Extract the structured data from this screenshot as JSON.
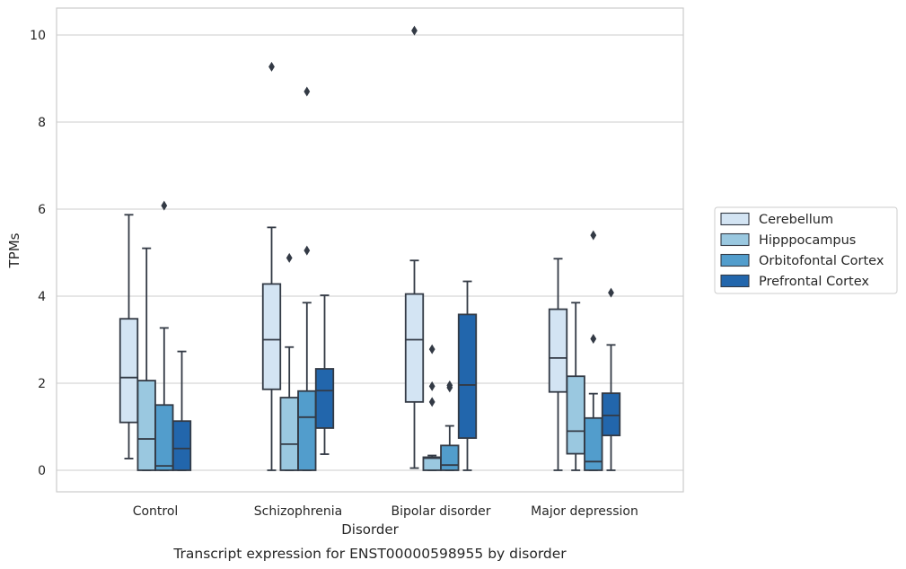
{
  "chart_data": {
    "type": "boxplot",
    "caption": "Transcript expression for ENST00000598955 by disorder",
    "xlabel": "Disorder",
    "ylabel": "TPMs",
    "ylim": [
      -0.5,
      10.6
    ],
    "yticks": [
      0,
      2,
      4,
      6,
      8,
      10
    ],
    "grid": "horizontal",
    "legend_position": "right",
    "categories": [
      "Control",
      "Schizophrenia",
      "Bipolar disorder",
      "Major depression"
    ],
    "series": [
      {
        "name": "Cerebellum",
        "color": "#d3e4f3",
        "boxes": [
          {
            "whislo": 0.27,
            "q1": 1.1,
            "med": 2.13,
            "q3": 3.48,
            "whishi": 5.87,
            "fliers": []
          },
          {
            "whislo": 0.0,
            "q1": 1.86,
            "med": 3.0,
            "q3": 4.28,
            "whishi": 5.58,
            "fliers": [
              9.27
            ]
          },
          {
            "whislo": 0.05,
            "q1": 1.57,
            "med": 3.0,
            "q3": 4.05,
            "whishi": 4.82,
            "fliers": [
              10.1
            ]
          },
          {
            "whislo": 0.0,
            "q1": 1.8,
            "med": 2.58,
            "q3": 3.7,
            "whishi": 4.86,
            "fliers": []
          }
        ]
      },
      {
        "name": "Hipppocampus",
        "color": "#9ac8e0",
        "boxes": [
          {
            "whislo": 0.0,
            "q1": 0.0,
            "med": 0.72,
            "q3": 2.06,
            "whishi": 5.1,
            "fliers": []
          },
          {
            "whislo": 0.0,
            "q1": 0.0,
            "med": 0.6,
            "q3": 1.67,
            "whishi": 2.83,
            "fliers": [
              4.88
            ]
          },
          {
            "whislo": 0.0,
            "q1": 0.0,
            "med": 0.28,
            "q3": 0.3,
            "whishi": 0.34,
            "fliers": [
              2.78,
              1.93,
              1.57
            ]
          },
          {
            "whislo": 0.0,
            "q1": 0.38,
            "med": 0.9,
            "q3": 2.16,
            "whishi": 3.85,
            "fliers": []
          }
        ]
      },
      {
        "name": "Orbitofontal Cortex",
        "color": "#529dcc",
        "boxes": [
          {
            "whislo": 0.0,
            "q1": 0.0,
            "med": 0.1,
            "q3": 1.5,
            "whishi": 3.27,
            "fliers": [
              6.08
            ]
          },
          {
            "whislo": 0.0,
            "q1": 0.0,
            "med": 1.22,
            "q3": 1.82,
            "whishi": 3.85,
            "fliers": [
              8.7,
              5.05
            ]
          },
          {
            "whislo": 0.0,
            "q1": 0.0,
            "med": 0.12,
            "q3": 0.57,
            "whishi": 1.02,
            "fliers": [
              1.95,
              1.9
            ]
          },
          {
            "whislo": 0.0,
            "q1": 0.0,
            "med": 0.2,
            "q3": 1.2,
            "whishi": 1.76,
            "fliers": [
              5.4,
              3.02
            ]
          }
        ]
      },
      {
        "name": "Prefrontal Cortex",
        "color": "#2266ac",
        "boxes": [
          {
            "whislo": 0.0,
            "q1": 0.0,
            "med": 0.5,
            "q3": 1.13,
            "whishi": 2.73,
            "fliers": []
          },
          {
            "whislo": 0.37,
            "q1": 0.97,
            "med": 1.83,
            "q3": 2.33,
            "whishi": 4.02,
            "fliers": []
          },
          {
            "whislo": 0.0,
            "q1": 0.74,
            "med": 1.96,
            "q3": 3.58,
            "whishi": 4.34,
            "fliers": []
          },
          {
            "whislo": 0.0,
            "q1": 0.8,
            "med": 1.26,
            "q3": 1.77,
            "whishi": 2.88,
            "fliers": [
              4.08
            ]
          }
        ]
      }
    ]
  }
}
